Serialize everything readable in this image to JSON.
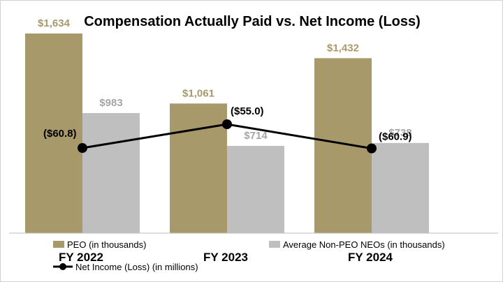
{
  "chart_data": {
    "type": "bar",
    "title": "Compensation Actually Paid vs. Net Income (Loss)",
    "categories": [
      "FY 2022",
      "FY 2023",
      "FY 2024"
    ],
    "series": [
      {
        "name": "PEO (in thousands)",
        "kind": "bar",
        "color": "#a8996b",
        "label_color": "#a8996b",
        "values": [
          1634,
          1061,
          1432
        ],
        "labels": [
          "$1,634",
          "$1,061",
          "$1,432"
        ]
      },
      {
        "name": "Average Non-PEO NEOs (in thousands)",
        "kind": "bar",
        "color": "#bfbfc0",
        "label_color": "#a6a6a6",
        "values": [
          983,
          714,
          738
        ],
        "labels": [
          "$983",
          "$714",
          "$738"
        ]
      },
      {
        "name": "Net Income (Loss) (in millions)",
        "kind": "line",
        "axis": "secondary",
        "color": "#000000",
        "values": [
          -60.8,
          -55.0,
          -60.9
        ],
        "labels": [
          "($60.8)",
          "($55.0)",
          "($60.9)"
        ]
      }
    ],
    "ylim": [
      0,
      1634
    ],
    "secondary_ylim": [
      -70,
      -50
    ],
    "grid": false,
    "legend": "bottom",
    "xlabel": "",
    "ylabel": ""
  }
}
